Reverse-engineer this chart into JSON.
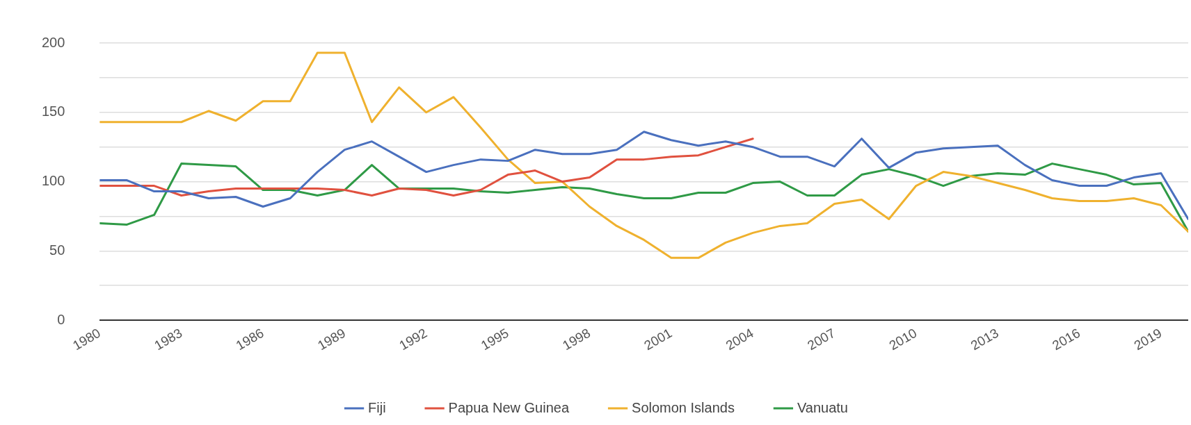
{
  "chart_data": {
    "type": "line",
    "x": [
      1980,
      1981,
      1982,
      1983,
      1984,
      1985,
      1986,
      1987,
      1988,
      1989,
      1990,
      1991,
      1992,
      1993,
      1994,
      1995,
      1996,
      1997,
      1998,
      1999,
      2000,
      2001,
      2002,
      2003,
      2004,
      2005,
      2006,
      2007,
      2008,
      2009,
      2010,
      2011,
      2012,
      2013,
      2014,
      2015,
      2016,
      2017,
      2018,
      2019,
      2020
    ],
    "series": [
      {
        "name": "Fiji",
        "color": "#4a70be",
        "values": [
          101,
          101,
          93,
          93,
          88,
          89,
          82,
          88,
          107,
          123,
          129,
          118,
          107,
          112,
          116,
          115,
          123,
          120,
          120,
          123,
          136,
          130,
          126,
          129,
          125,
          118,
          118,
          111,
          131,
          110,
          121,
          124,
          125,
          126,
          112,
          101,
          97,
          97,
          103,
          106,
          73
        ]
      },
      {
        "name": "Papua New Guinea",
        "color": "#e0513f",
        "values": [
          97,
          97,
          97,
          90,
          93,
          95,
          95,
          95,
          95,
          94,
          90,
          95,
          94,
          90,
          94,
          105,
          108,
          100,
          103,
          116,
          116,
          118,
          119,
          125,
          131,
          null,
          null,
          null,
          null,
          null,
          null,
          null,
          null,
          null,
          null,
          null,
          null,
          null,
          null,
          null,
          null
        ]
      },
      {
        "name": "Solomon Islands",
        "color": "#efb12e",
        "values": [
          143,
          143,
          143,
          143,
          151,
          144,
          158,
          158,
          193,
          193,
          143,
          168,
          150,
          161,
          139,
          116,
          99,
          100,
          82,
          68,
          58,
          45,
          45,
          56,
          63,
          68,
          70,
          84,
          87,
          73,
          97,
          107,
          104,
          99,
          94,
          88,
          86,
          86,
          88,
          83,
          64
        ]
      },
      {
        "name": "Vanuatu",
        "color": "#2f9a46",
        "values": [
          70,
          69,
          76,
          113,
          112,
          111,
          94,
          94,
          90,
          94,
          112,
          95,
          95,
          95,
          93,
          92,
          94,
          96,
          95,
          91,
          88,
          88,
          92,
          92,
          99,
          100,
          90,
          90,
          105,
          109,
          104,
          97,
          104,
          106,
          105,
          113,
          109,
          105,
          98,
          99,
          64
        ]
      }
    ],
    "xlim": [
      1980,
      2020
    ],
    "xticks": [
      1980,
      1983,
      1986,
      1989,
      1992,
      1995,
      1998,
      2001,
      2004,
      2007,
      2010,
      2013,
      2016,
      2019
    ],
    "ylim": [
      0,
      200
    ],
    "yticks": [
      0,
      {
        "value": 25,
        "label": null
      },
      50,
      {
        "value": 75,
        "label": null
      },
      100,
      {
        "value": 125,
        "label": null
      },
      150,
      {
        "value": 175,
        "label": null
      },
      200
    ],
    "grid": "y",
    "legend": "bottom",
    "marker": "none",
    "line_style": "solid"
  }
}
